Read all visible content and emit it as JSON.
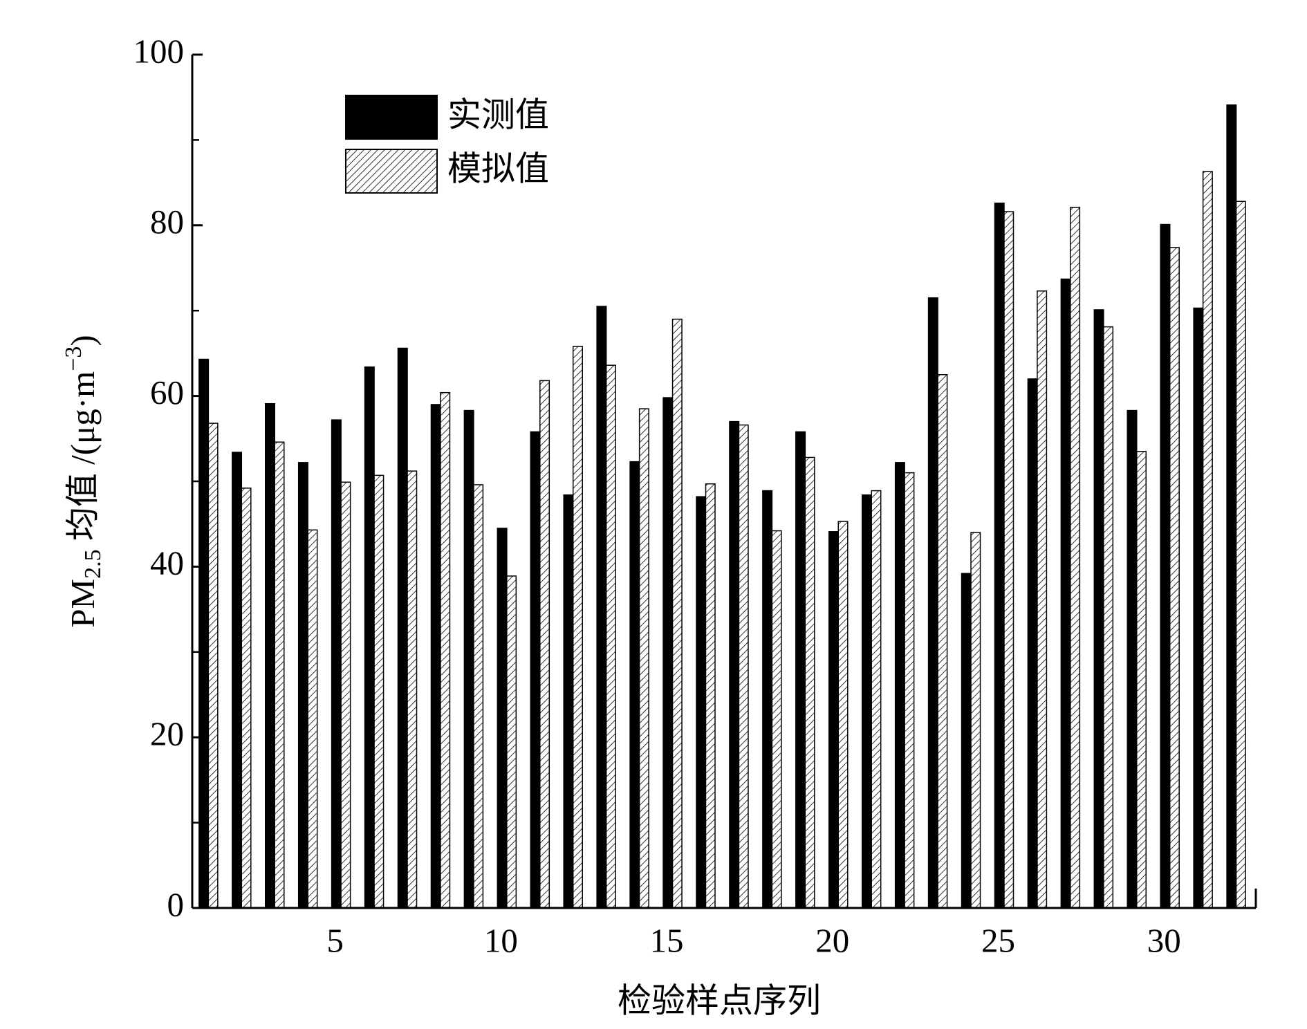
{
  "chart_data": {
    "type": "bar",
    "ylabel_parts": [
      "PM",
      "2.5",
      " 均值 /(μg·m",
      "−3",
      ")"
    ],
    "xlabel": "检验样点序列",
    "x": [
      1,
      2,
      3,
      4,
      5,
      6,
      7,
      8,
      9,
      10,
      11,
      12,
      13,
      14,
      15,
      16,
      17,
      18,
      19,
      20,
      21,
      22,
      23,
      24,
      25,
      26,
      27,
      28,
      29,
      30,
      31,
      32
    ],
    "series": [
      {
        "name": "实测值",
        "color": "#000000",
        "values": [
          64.3,
          53.4,
          59.1,
          52.2,
          57.2,
          63.4,
          65.6,
          59.0,
          58.3,
          44.5,
          55.8,
          48.4,
          70.5,
          52.3,
          59.8,
          48.2,
          57.0,
          48.9,
          55.8,
          44.1,
          48.4,
          52.2,
          71.5,
          39.2,
          82.6,
          62.0,
          73.7,
          70.1,
          58.3,
          80.1,
          70.3,
          94.1
        ]
      },
      {
        "name": "模拟值",
        "color": "#000000",
        "hatch": true,
        "values": [
          56.8,
          49.2,
          54.6,
          44.3,
          49.9,
          50.7,
          51.2,
          60.4,
          49.6,
          38.9,
          61.8,
          65.8,
          63.6,
          58.5,
          69.0,
          49.7,
          56.6,
          44.2,
          52.8,
          45.3,
          48.9,
          51.0,
          62.5,
          44.0,
          81.6,
          72.3,
          82.1,
          68.1,
          53.5,
          77.4,
          86.3,
          82.8
        ]
      }
    ],
    "xlim": [
      0.69,
      32.77
    ],
    "xticks": [
      5,
      10,
      15,
      20,
      25,
      30
    ],
    "ylim": [
      0,
      100
    ],
    "yticks": [
      0,
      20,
      40,
      60,
      80,
      100
    ],
    "yminorticks": [
      10,
      30,
      50,
      70,
      90
    ],
    "legend": "upper-left"
  }
}
